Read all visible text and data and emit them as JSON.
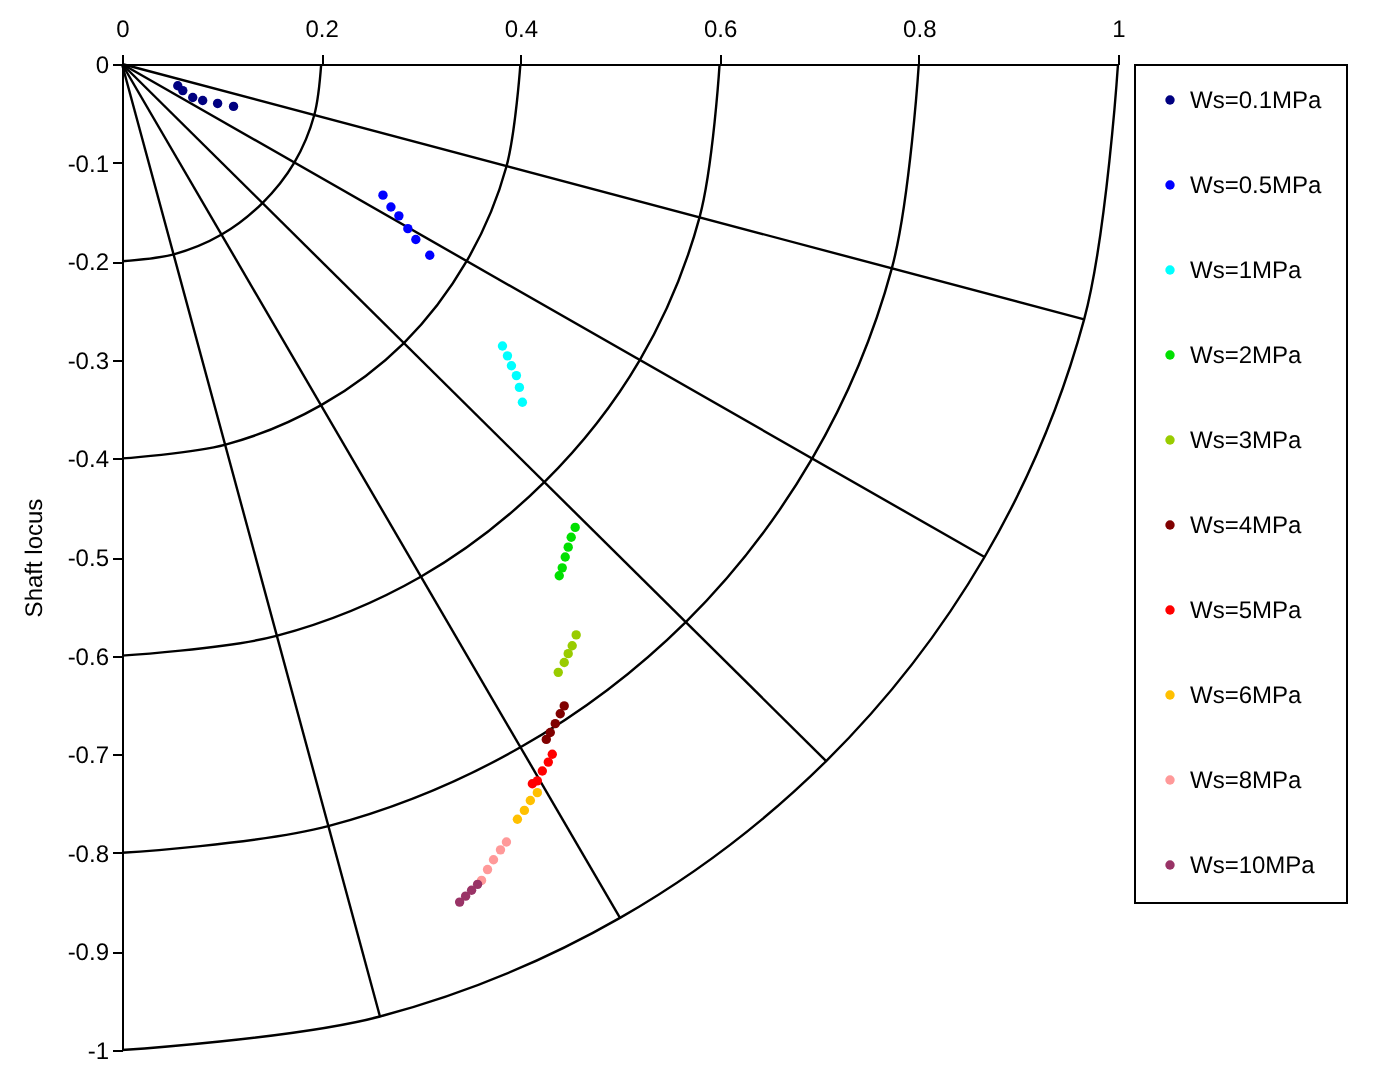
{
  "chart_data": {
    "type": "scatter",
    "ylabel": "Shaft locus",
    "xlim": [
      0,
      1
    ],
    "ylim": [
      -1,
      0
    ],
    "xticks": [
      0,
      0.2,
      0.4,
      0.6,
      0.8,
      1
    ],
    "yticks": [
      0,
      -0.1,
      -0.2,
      -0.3,
      -0.4,
      -0.5,
      -0.6,
      -0.7,
      -0.8,
      -0.9,
      -1
    ],
    "grid": false,
    "legend": "right",
    "marker": "circle",
    "series": [
      {
        "name": "Ws=0.1MPa",
        "color": "#000080",
        "x": [
          0.056,
          0.061,
          0.071,
          0.081,
          0.096,
          0.112
        ],
        "values": [
          -0.022,
          -0.027,
          -0.034,
          -0.037,
          -0.04,
          -0.043
        ]
      },
      {
        "name": "Ws=0.5MPa",
        "color": "#0000ff",
        "x": [
          0.262,
          0.27,
          0.278,
          0.287,
          0.295,
          0.309
        ],
        "values": [
          -0.133,
          -0.145,
          -0.154,
          -0.167,
          -0.178,
          -0.194
        ]
      },
      {
        "name": "Ws=1MPa",
        "color": "#00ffff",
        "x": [
          0.382,
          0.387,
          0.391,
          0.396,
          0.399,
          0.402
        ],
        "values": [
          -0.286,
          -0.296,
          -0.306,
          -0.316,
          -0.328,
          -0.343
        ]
      },
      {
        "name": "Ws=2MPa",
        "color": "#00e000",
        "x": [
          0.455,
          0.451,
          0.448,
          0.445,
          0.442,
          0.439
        ],
        "values": [
          -0.47,
          -0.48,
          -0.49,
          -0.5,
          -0.511,
          -0.519
        ]
      },
      {
        "name": "Ws=3MPa",
        "color": "#99cc00",
        "x": [
          0.456,
          0.452,
          0.448,
          0.444,
          0.438
        ],
        "values": [
          -0.579,
          -0.59,
          -0.598,
          -0.607,
          -0.617
        ]
      },
      {
        "name": "Ws=4MPa",
        "color": "#800000",
        "x": [
          0.444,
          0.44,
          0.435,
          0.43,
          0.426
        ],
        "values": [
          -0.651,
          -0.659,
          -0.669,
          -0.678,
          -0.685
        ]
      },
      {
        "name": "Ws=5MPa",
        "color": "#ff0000",
        "x": [
          0.432,
          0.428,
          0.422,
          0.417,
          0.412
        ],
        "values": [
          -0.7,
          -0.708,
          -0.717,
          -0.727,
          -0.73
        ]
      },
      {
        "name": "Ws=6MPa",
        "color": "#ffc000",
        "x": [
          0.417,
          0.41,
          0.404,
          0.397
        ],
        "values": [
          -0.739,
          -0.747,
          -0.757,
          -0.766
        ]
      },
      {
        "name": "Ws=8MPa",
        "color": "#ff9999",
        "x": [
          0.386,
          0.38,
          0.373,
          0.367,
          0.361
        ],
        "values": [
          -0.789,
          -0.797,
          -0.807,
          -0.817,
          -0.828
        ]
      },
      {
        "name": "Ws=10MPa",
        "color": "#993366",
        "x": [
          0.357,
          0.351,
          0.345,
          0.339
        ],
        "values": [
          -0.832,
          -0.838,
          -0.844,
          -0.85
        ]
      },
      {
        "type": "line",
        "marker": "none",
        "color": "#000000",
        "x": [
          0.2,
          0.193,
          0.173,
          0.141,
          0.1,
          0.052,
          0
        ],
        "values": [
          0,
          -0.052,
          -0.1,
          -0.141,
          -0.173,
          -0.193,
          -0.2
        ]
      },
      {
        "type": "line",
        "marker": "none",
        "color": "#000000",
        "x": [
          0.4,
          0.386,
          0.346,
          0.283,
          0.2,
          0.104,
          0
        ],
        "values": [
          0,
          -0.104,
          -0.2,
          -0.283,
          -0.346,
          -0.386,
          -0.4
        ]
      },
      {
        "type": "line",
        "marker": "none",
        "color": "#000000",
        "x": [
          0.6,
          0.58,
          0.52,
          0.424,
          0.3,
          0.155,
          0
        ],
        "values": [
          0,
          -0.155,
          -0.3,
          -0.424,
          -0.52,
          -0.58,
          -0.6
        ]
      },
      {
        "type": "line",
        "marker": "none",
        "color": "#000000",
        "x": [
          0.8,
          0.773,
          0.693,
          0.566,
          0.4,
          0.207,
          0
        ],
        "values": [
          0,
          -0.207,
          -0.4,
          -0.566,
          -0.693,
          -0.773,
          -0.8
        ]
      },
      {
        "type": "line",
        "marker": "none",
        "color": "#000000",
        "x": [
          1,
          0.966,
          0.866,
          0.707,
          0.5,
          0.259,
          0
        ],
        "values": [
          0,
          -0.259,
          -0.5,
          -0.707,
          -0.866,
          -0.966,
          -1
        ]
      },
      {
        "type": "line",
        "marker": "none",
        "color": "#000000",
        "x": [
          0,
          0.966
        ],
        "values": [
          0,
          -0.259
        ]
      },
      {
        "type": "line",
        "marker": "none",
        "color": "#000000",
        "x": [
          0,
          0.866
        ],
        "values": [
          0,
          -0.5
        ]
      },
      {
        "type": "line",
        "marker": "none",
        "color": "#000000",
        "x": [
          0,
          0.707
        ],
        "values": [
          0,
          -0.707
        ]
      },
      {
        "type": "line",
        "marker": "none",
        "color": "#000000",
        "x": [
          0,
          0.5
        ],
        "values": [
          0,
          -0.866
        ]
      },
      {
        "type": "line",
        "marker": "none",
        "color": "#000000",
        "x": [
          0,
          0.259
        ],
        "values": [
          0,
          -0.966
        ]
      }
    ]
  }
}
